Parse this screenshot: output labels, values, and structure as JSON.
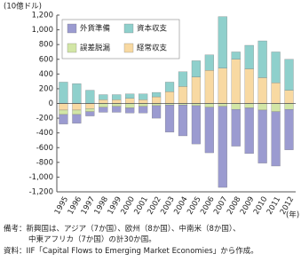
{
  "chart_data": {
    "type": "bar",
    "stacked": true,
    "y_label": "(10億ドル)",
    "x_label": "(年)",
    "categories": [
      "1995",
      "1996",
      "1997",
      "1998",
      "1999",
      "2000",
      "2001",
      "2002",
      "2003",
      "2004",
      "2005",
      "2006",
      "2007",
      "2008",
      "2009",
      "2010",
      "2011",
      "2012"
    ],
    "series": [
      {
        "name": "外貨準備",
        "color": "#9b9bd0",
        "values": [
          -130,
          -120,
          -60,
          -70,
          -80,
          -70,
          -90,
          -170,
          -370,
          -420,
          -520,
          -620,
          -1100,
          -500,
          -620,
          -720,
          -740,
          -550
        ]
      },
      {
        "name": "資本収支",
        "color": "#8fd0cc",
        "values": [
          290,
          270,
          180,
          70,
          70,
          60,
          80,
          60,
          130,
          200,
          220,
          210,
          700,
          100,
          320,
          500,
          420,
          420
        ]
      },
      {
        "name": "誤差脱漏",
        "color": "#d2e6a6",
        "values": [
          -60,
          -60,
          -40,
          -50,
          -40,
          -60,
          -40,
          -30,
          -20,
          -20,
          -30,
          -50,
          -40,
          -80,
          -60,
          -90,
          -110,
          -80
        ]
      },
      {
        "name": "経常収支",
        "color": "#f8d9a2",
        "values": [
          -90,
          -90,
          -70,
          50,
          50,
          70,
          50,
          90,
          160,
          230,
          360,
          450,
          480,
          600,
          470,
          350,
          280,
          180
        ]
      }
    ],
    "ylim": [
      -1200,
      1200
    ],
    "yticks": [
      {
        "value": -1200,
        "label": "-1,200"
      },
      {
        "value": -1000,
        "label": "-1,000"
      },
      -800,
      -600,
      -400,
      -200,
      0,
      200,
      400,
      600,
      800,
      {
        "value": 1000,
        "label": "1,000"
      },
      {
        "value": 1200,
        "label": "1,200"
      }
    ],
    "grid": false
  },
  "notes": [
    "備考：新興国は、アジア（7か国）、欧州（8か国）、中南米（8か国）、",
    "中東アフリカ（7か国）の計30か国。",
    "資料：IIF「Capital Flows to Emerging Market Economies」から作成。"
  ]
}
